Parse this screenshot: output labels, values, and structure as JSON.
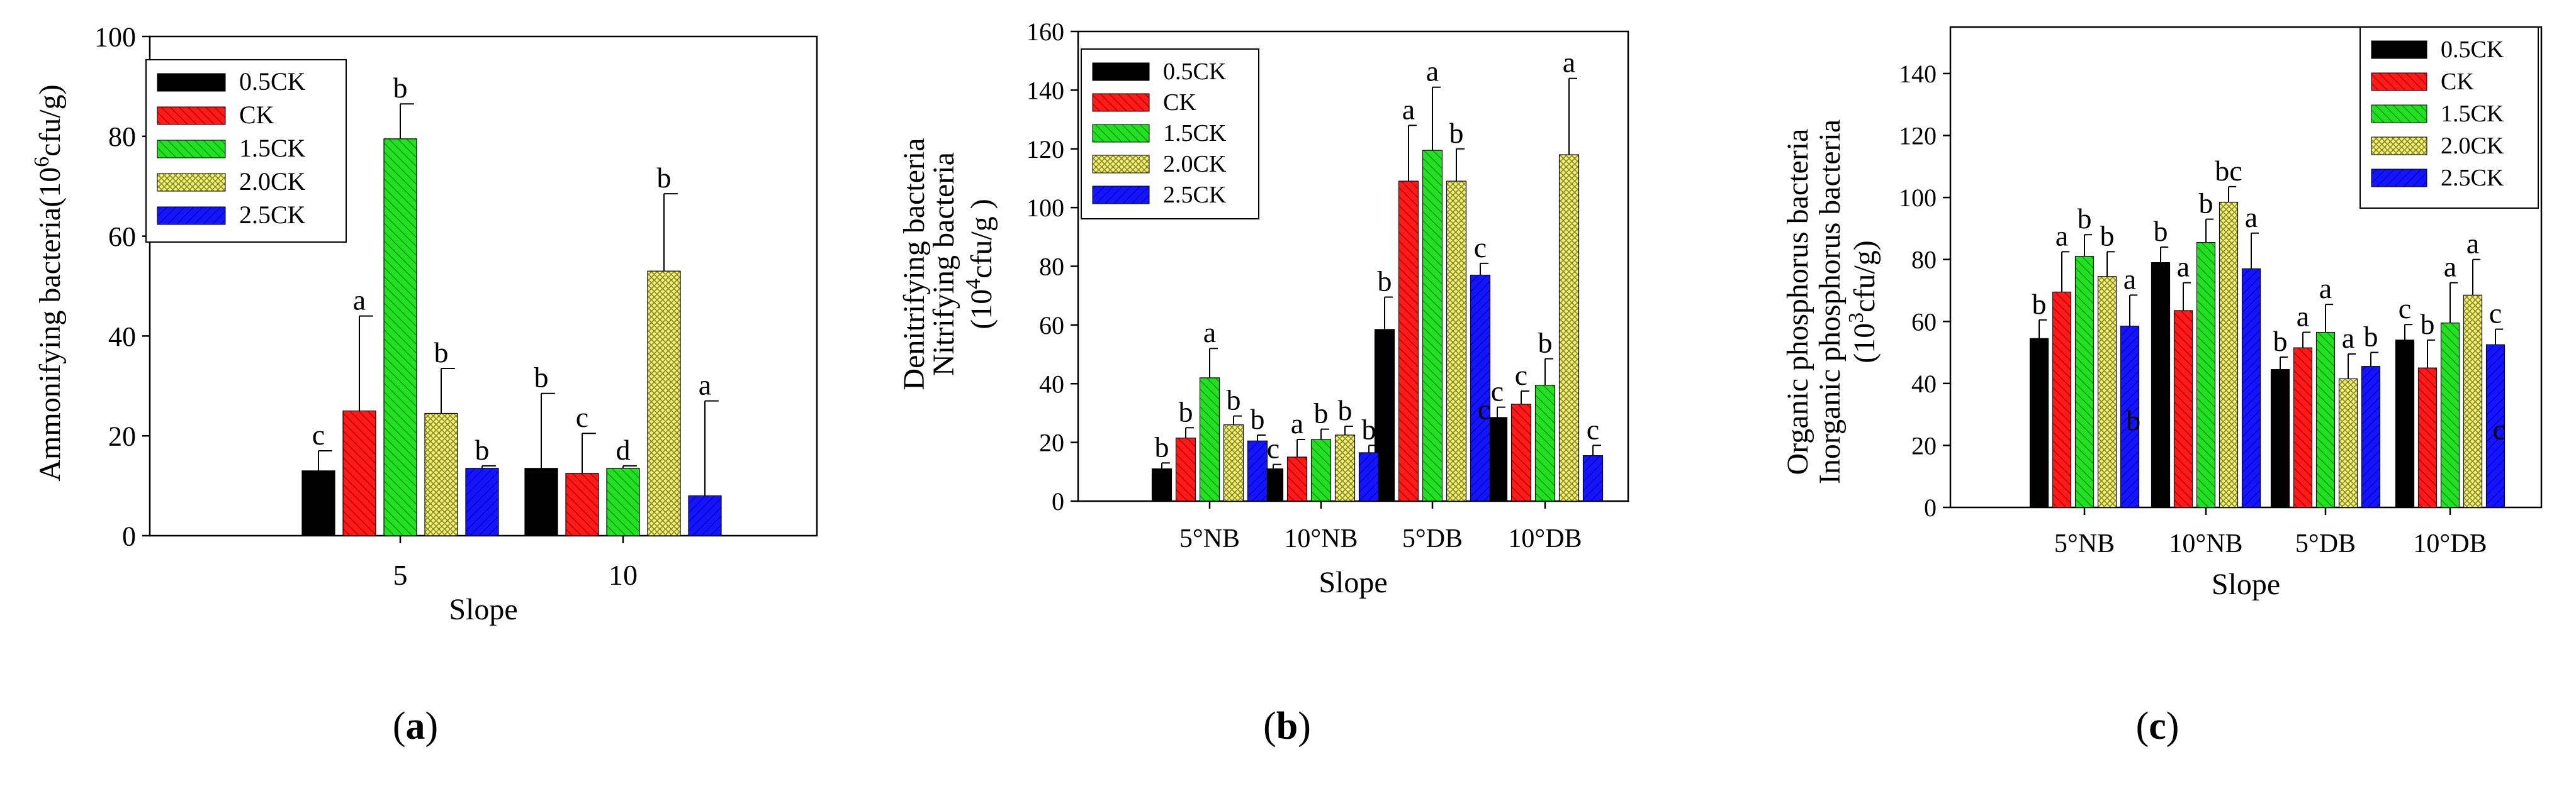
{
  "figure": {
    "labels": {
      "a": {
        "open": "(",
        "letter": "a",
        "close": ")"
      },
      "b": {
        "open": "(",
        "letter": "b",
        "close": ")"
      },
      "c": {
        "open": "(",
        "letter": "c",
        "close": ")"
      }
    }
  },
  "colors": {
    "0.5CK": "#000000",
    "CK": "#ff0000",
    "1.5CK": "#00dd00",
    "2.0CK": "#e8e84a",
    "2.5CK": "#0000ff"
  },
  "chart_data": [
    {
      "id": "a",
      "type": "bar",
      "categories": [
        "5",
        "10"
      ],
      "xlabel": "Slope",
      "ylabel_lines": [
        [
          {
            "t": "Ammonifying bacteria(10"
          },
          {
            "t": "6",
            "sup": true
          },
          {
            "t": "cfu/g)"
          }
        ]
      ],
      "ylim": [
        0,
        100
      ],
      "yticks": [
        0,
        20,
        40,
        60,
        80,
        100
      ],
      "legend_position": "top-left",
      "series": [
        {
          "name": "0.5CK",
          "values": [
            13,
            13.5
          ],
          "errors": [
            4,
            15
          ],
          "letters": [
            "c",
            "b"
          ]
        },
        {
          "name": "CK",
          "values": [
            25,
            12.5
          ],
          "errors": [
            19,
            8
          ],
          "letters": [
            "a",
            "c"
          ]
        },
        {
          "name": "1.5CK",
          "values": [
            79.5,
            13.5
          ],
          "errors": [
            7,
            0.5
          ],
          "letters": [
            "b",
            "d"
          ]
        },
        {
          "name": "2.0CK",
          "values": [
            24.5,
            53
          ],
          "errors": [
            9,
            15.5
          ],
          "letters": [
            "b",
            "b"
          ]
        },
        {
          "name": "2.5CK",
          "values": [
            13.5,
            8
          ],
          "errors": [
            0.5,
            19
          ],
          "letters": [
            "b",
            "a"
          ]
        }
      ]
    },
    {
      "id": "b",
      "type": "bar",
      "categories": [
        "5°NB",
        "10°NB",
        "5°DB",
        "10°DB"
      ],
      "xlabel": "Slope",
      "ylabel_lines": [
        [
          {
            "t": "Denitrifying bacteria"
          }
        ],
        [
          {
            "t": "Nitrifying bacteria"
          }
        ],
        [
          {
            "t": "(10"
          },
          {
            "t": "4",
            "sup": true
          },
          {
            "t": "cfu/g )"
          }
        ]
      ],
      "ylim": [
        0,
        160
      ],
      "yticks": [
        0,
        20,
        40,
        60,
        80,
        100,
        120,
        140,
        160
      ],
      "legend_position": "top-left",
      "extra_letters": [
        {
          "category": "5°DB",
          "value": 28,
          "text": "c"
        }
      ],
      "series": [
        {
          "name": "0.5CK",
          "values": [
            11,
            11,
            58.5,
            28.5
          ],
          "errors": [
            2,
            1.5,
            11,
            3.5
          ],
          "letters": [
            "b",
            "c",
            "b",
            "c"
          ]
        },
        {
          "name": "CK",
          "values": [
            21.5,
            15,
            109,
            33
          ],
          "errors": [
            3.5,
            6,
            19,
            4.5
          ],
          "letters": [
            "b",
            "a",
            "a",
            "c"
          ]
        },
        {
          "name": "1.5CK",
          "values": [
            42,
            21,
            119.5,
            39.5
          ],
          "errors": [
            10,
            3.5,
            21.5,
            9
          ],
          "letters": [
            "a",
            "b",
            "a",
            "b"
          ]
        },
        {
          "name": "2.0CK",
          "values": [
            26,
            22.5,
            109,
            118
          ],
          "errors": [
            3,
            3,
            11,
            26
          ],
          "letters": [
            "b",
            "b",
            "b",
            "a"
          ]
        },
        {
          "name": "2.5CK",
          "values": [
            20.5,
            16.5,
            77,
            15.5
          ],
          "errors": [
            2,
            2.5,
            4,
            3.5
          ],
          "letters": [
            "b",
            "b",
            "c",
            "c"
          ]
        }
      ]
    },
    {
      "id": "c",
      "type": "bar",
      "categories": [
        "5°NB",
        "10°NB",
        "5°DB",
        "10°DB"
      ],
      "xlabel": "Slope",
      "ylabel_lines": [
        [
          {
            "t": "Organic phosphorus bacteria"
          }
        ],
        [
          {
            "t": "Inorganic phosphorus bacteria"
          }
        ],
        [
          {
            "t": "(10"
          },
          {
            "t": "3",
            "sup": true
          },
          {
            "t": "cfu/g)"
          }
        ]
      ],
      "ylim": [
        0,
        155
      ],
      "yticks": [
        0,
        20,
        40,
        60,
        80,
        100,
        120,
        140
      ],
      "legend_position": "top-right",
      "extra_letters": [
        {
          "category": "5°NB",
          "value": 25,
          "text": "b"
        },
        {
          "category": "10°DB",
          "value": 22,
          "text": "c"
        }
      ],
      "series": [
        {
          "name": "0.5CK",
          "values": [
            54.5,
            79,
            44.5,
            54
          ],
          "errors": [
            6,
            5,
            4,
            5
          ],
          "letters": [
            "b",
            "b",
            "b",
            "c"
          ]
        },
        {
          "name": "CK",
          "values": [
            69.5,
            63.5,
            51.5,
            45
          ],
          "errors": [
            13,
            9,
            5,
            9
          ],
          "letters": [
            "a",
            "a",
            "a",
            "b"
          ]
        },
        {
          "name": "1.5CK",
          "values": [
            81,
            85.5,
            56.5,
            59.5
          ],
          "errors": [
            7,
            7.5,
            9,
            13
          ],
          "letters": [
            "b",
            "b",
            "a",
            "a"
          ]
        },
        {
          "name": "2.0CK",
          "values": [
            74.5,
            98.5,
            41.5,
            68.5
          ],
          "errors": [
            8,
            5,
            8,
            11.5
          ],
          "letters": [
            "b",
            "bc",
            "a",
            "a"
          ]
        },
        {
          "name": "2.5CK",
          "values": [
            58.5,
            77,
            45.5,
            52.5
          ],
          "errors": [
            10,
            11.5,
            4.5,
            5
          ],
          "letters": [
            "a",
            "a",
            "b",
            "c"
          ]
        }
      ]
    }
  ]
}
